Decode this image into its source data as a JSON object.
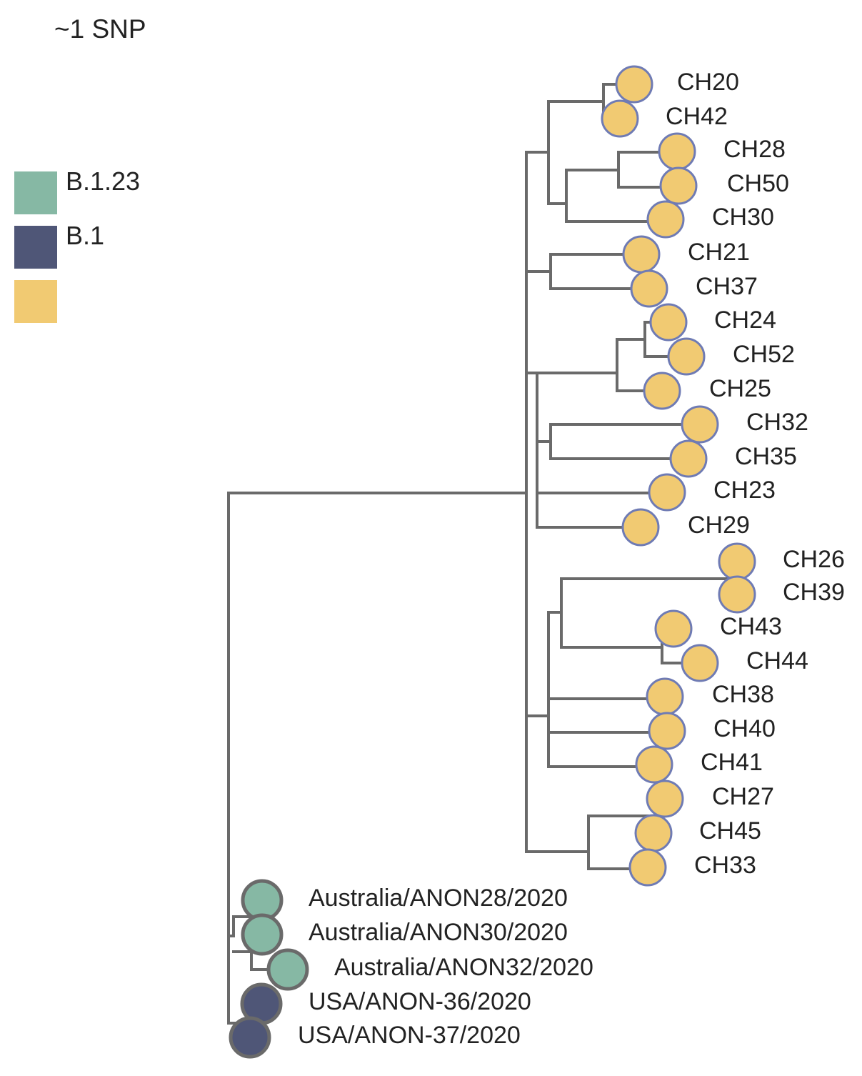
{
  "scale_label": "~1 SNP",
  "legend": [
    {
      "label": "B.1.23",
      "color": "#86b8a4"
    },
    {
      "label": "B.1",
      "color": "#4f5677"
    },
    {
      "label": "",
      "color": "#f1ca72"
    }
  ],
  "colors": {
    "branch": "#6a6a6a",
    "ch_outline": "#6f7bb4",
    "other_outline": "#6a6a6a"
  },
  "tips": [
    {
      "label": "CH20",
      "group": 2
    },
    {
      "label": "CH42",
      "group": 2
    },
    {
      "label": "CH28",
      "group": 2
    },
    {
      "label": "CH50",
      "group": 2
    },
    {
      "label": "CH30",
      "group": 2
    },
    {
      "label": "CH21",
      "group": 2
    },
    {
      "label": "CH37",
      "group": 2
    },
    {
      "label": "CH24",
      "group": 2
    },
    {
      "label": "CH52",
      "group": 2
    },
    {
      "label": "CH25",
      "group": 2
    },
    {
      "label": "CH32",
      "group": 2
    },
    {
      "label": "CH35",
      "group": 2
    },
    {
      "label": "CH23",
      "group": 2
    },
    {
      "label": "CH29",
      "group": 2
    },
    {
      "label": "CH26",
      "group": 2
    },
    {
      "label": "CH39",
      "group": 2
    },
    {
      "label": "CH43",
      "group": 2
    },
    {
      "label": "CH44",
      "group": 2
    },
    {
      "label": "CH38",
      "group": 2
    },
    {
      "label": "CH40",
      "group": 2
    },
    {
      "label": "CH41",
      "group": 2
    },
    {
      "label": "CH27",
      "group": 2
    },
    {
      "label": "CH45",
      "group": 2
    },
    {
      "label": "CH33",
      "group": 2
    },
    {
      "label": "Australia/ANON28/2020",
      "group": 0
    },
    {
      "label": "Australia/ANON30/2020",
      "group": 0
    },
    {
      "label": "Australia/ANON32/2020",
      "group": 0
    },
    {
      "label": "USA/ANON-36/2020",
      "group": 1
    },
    {
      "label": "USA/ANON-37/2020",
      "group": 1
    }
  ]
}
